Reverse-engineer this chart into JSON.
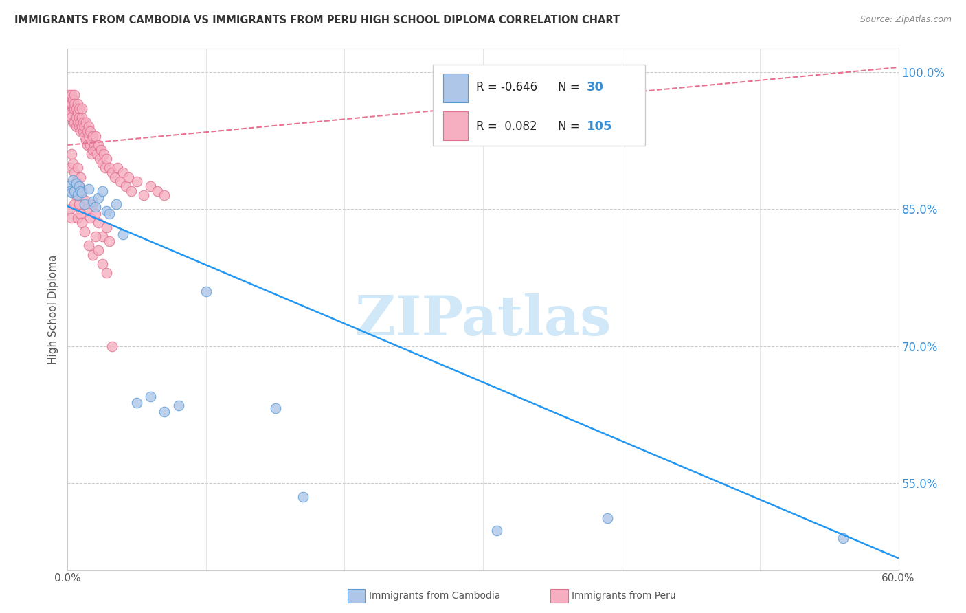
{
  "title": "IMMIGRANTS FROM CAMBODIA VS IMMIGRANTS FROM PERU HIGH SCHOOL DIPLOMA CORRELATION CHART",
  "source": "Source: ZipAtlas.com",
  "ylabel": "High School Diploma",
  "xlim": [
    0.0,
    0.6
  ],
  "ylim": [
    0.455,
    1.025
  ],
  "right_yticks": [
    0.55,
    0.7,
    0.85,
    1.0
  ],
  "right_ytick_labels": [
    "55.0%",
    "70.0%",
    "85.0%",
    "100.0%"
  ],
  "grid_yvals": [
    0.55,
    0.7,
    0.85,
    1.0
  ],
  "xtick_positions": [
    0.0,
    0.1,
    0.2,
    0.3,
    0.4,
    0.5,
    0.6
  ],
  "xtick_labels": [
    "0.0%",
    "",
    "",
    "",
    "",
    "",
    "60.0%"
  ],
  "cambodia_color": "#aec6e8",
  "peru_color": "#f5afc0",
  "cambodia_edge": "#5b9bd5",
  "peru_edge": "#e07090",
  "trend_cambodia_color": "#2196F3",
  "trend_peru_color": "#e87090",
  "trend_cambodia_y0": 0.853,
  "trend_cambodia_y1": 0.468,
  "trend_peru_y0": 0.92,
  "trend_peru_y1": 1.005,
  "legend_R_cambodia": "-0.646",
  "legend_N_cambodia": "30",
  "legend_R_peru": "0.082",
  "legend_N_peru": "105",
  "watermark_text": "ZIPatlas",
  "watermark_color": "#d0e8f8",
  "bottom_legend_cam": "Immigrants from Cambodia",
  "bottom_legend_peru": "Immigrants from Peru",
  "cambodia_x": [
    0.001,
    0.002,
    0.003,
    0.004,
    0.005,
    0.006,
    0.007,
    0.008,
    0.009,
    0.01,
    0.012,
    0.015,
    0.018,
    0.02,
    0.022,
    0.025,
    0.028,
    0.03,
    0.035,
    0.04,
    0.05,
    0.06,
    0.07,
    0.08,
    0.1,
    0.15,
    0.17,
    0.31,
    0.39,
    0.56
  ],
  "cambodia_y": [
    0.875,
    0.87,
    0.868,
    0.882,
    0.87,
    0.878,
    0.865,
    0.875,
    0.87,
    0.868,
    0.855,
    0.872,
    0.858,
    0.852,
    0.862,
    0.87,
    0.848,
    0.845,
    0.855,
    0.822,
    0.638,
    0.645,
    0.628,
    0.635,
    0.76,
    0.632,
    0.535,
    0.498,
    0.512,
    0.49
  ],
  "peru_x": [
    0.001,
    0.001,
    0.002,
    0.002,
    0.002,
    0.003,
    0.003,
    0.003,
    0.004,
    0.004,
    0.004,
    0.005,
    0.005,
    0.005,
    0.005,
    0.006,
    0.006,
    0.006,
    0.007,
    0.007,
    0.007,
    0.008,
    0.008,
    0.008,
    0.009,
    0.009,
    0.01,
    0.01,
    0.01,
    0.011,
    0.011,
    0.012,
    0.012,
    0.013,
    0.013,
    0.014,
    0.014,
    0.015,
    0.015,
    0.016,
    0.016,
    0.017,
    0.017,
    0.018,
    0.018,
    0.019,
    0.02,
    0.02,
    0.021,
    0.022,
    0.023,
    0.024,
    0.025,
    0.026,
    0.027,
    0.028,
    0.03,
    0.032,
    0.034,
    0.036,
    0.038,
    0.04,
    0.042,
    0.044,
    0.046,
    0.05,
    0.055,
    0.06,
    0.065,
    0.07,
    0.002,
    0.003,
    0.004,
    0.005,
    0.006,
    0.007,
    0.008,
    0.009,
    0.01,
    0.012,
    0.014,
    0.016,
    0.018,
    0.02,
    0.022,
    0.025,
    0.028,
    0.03,
    0.002,
    0.003,
    0.004,
    0.005,
    0.006,
    0.007,
    0.008,
    0.009,
    0.01,
    0.012,
    0.015,
    0.018,
    0.02,
    0.022,
    0.025,
    0.028,
    0.032
  ],
  "peru_y": [
    0.975,
    0.96,
    0.97,
    0.955,
    0.965,
    0.975,
    0.95,
    0.965,
    0.96,
    0.945,
    0.97,
    0.975,
    0.96,
    0.945,
    0.965,
    0.94,
    0.96,
    0.95,
    0.965,
    0.945,
    0.955,
    0.94,
    0.95,
    0.96,
    0.945,
    0.935,
    0.95,
    0.94,
    0.96,
    0.935,
    0.945,
    0.94,
    0.93,
    0.945,
    0.925,
    0.935,
    0.92,
    0.94,
    0.93,
    0.92,
    0.935,
    0.925,
    0.91,
    0.93,
    0.915,
    0.92,
    0.915,
    0.93,
    0.91,
    0.92,
    0.905,
    0.915,
    0.9,
    0.91,
    0.895,
    0.905,
    0.895,
    0.89,
    0.885,
    0.895,
    0.88,
    0.89,
    0.875,
    0.885,
    0.87,
    0.88,
    0.865,
    0.875,
    0.87,
    0.865,
    0.895,
    0.91,
    0.9,
    0.89,
    0.88,
    0.895,
    0.875,
    0.885,
    0.87,
    0.86,
    0.85,
    0.84,
    0.855,
    0.845,
    0.835,
    0.82,
    0.83,
    0.815,
    0.85,
    0.84,
    0.87,
    0.855,
    0.865,
    0.84,
    0.855,
    0.845,
    0.835,
    0.825,
    0.81,
    0.8,
    0.82,
    0.805,
    0.79,
    0.78,
    0.7
  ]
}
